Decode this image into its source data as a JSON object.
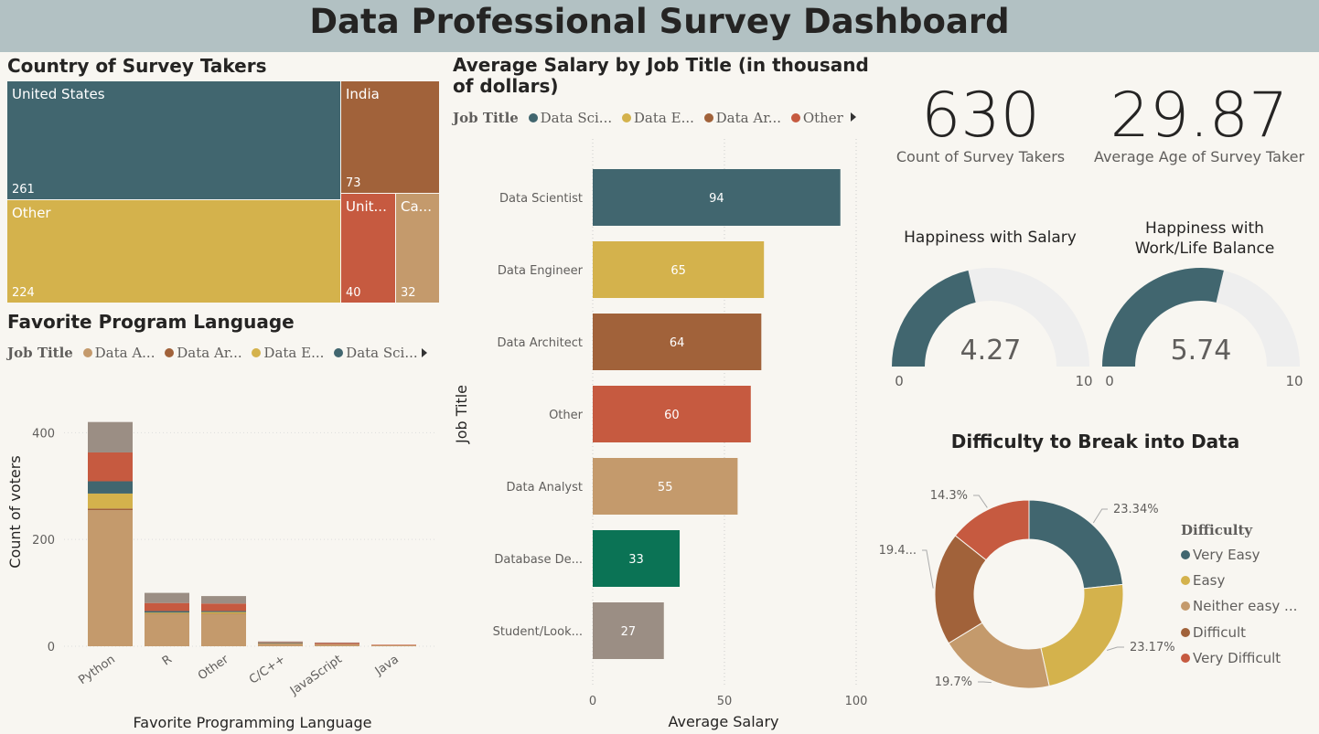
{
  "title": "Data Professional Survey Dashboard",
  "treemap": {
    "title": "Country of Survey Takers",
    "items": [
      {
        "label": "United States",
        "value": "261",
        "color": "#41666f"
      },
      {
        "label": "India",
        "value": "73",
        "color": "#a1623a"
      },
      {
        "label": "Other",
        "value": "224",
        "color": "#d4b24c"
      },
      {
        "label": "Unit...",
        "value": "40",
        "color": "#c65a40"
      },
      {
        "label": "Ca...",
        "value": "32",
        "color": "#c49a6c"
      }
    ]
  },
  "lang_chart": {
    "title": "Favorite Program Language",
    "legend": {
      "title": "Job Title",
      "items": [
        {
          "label": "Data A...",
          "color": "#c49a6c"
        },
        {
          "label": "Data Ar...",
          "color": "#a1623a"
        },
        {
          "label": "Data E...",
          "color": "#d4b24c"
        },
        {
          "label": "Data Sci...",
          "color": "#41666f"
        }
      ]
    },
    "ylabel": "Count of voters",
    "xlabel": "Favorite Programming Language"
  },
  "salary_chart": {
    "title": "Average Salary by Job Title (in thousand of dollars)",
    "legend": {
      "title": "Job Title",
      "items": [
        {
          "label": "Data Sci...",
          "color": "#41666f"
        },
        {
          "label": "Data E...",
          "color": "#d4b24c"
        },
        {
          "label": "Data Ar...",
          "color": "#a1623a"
        },
        {
          "label": "Other",
          "color": "#c65a40"
        }
      ]
    },
    "ylabel": "Job Title",
    "xlabel": "Average Salary"
  },
  "kpis": {
    "count": {
      "value": "630",
      "label": "Count of Survey Takers"
    },
    "age": {
      "value": "29.87",
      "label": "Average Age of Survey Taker"
    }
  },
  "gauges": [
    {
      "title": "Happiness with Salary",
      "value": 4.27,
      "display": "4.27",
      "min": "0",
      "max": "10",
      "color": "#41666f"
    },
    {
      "title": "Happiness with Work/Life Balance",
      "value": 5.74,
      "display": "5.74",
      "min": "0",
      "max": "10",
      "color": "#41666f"
    }
  ],
  "donut": {
    "title": "Difficulty to Break into Data",
    "legend_title": "Difficulty",
    "legend": [
      "Very Easy",
      "Easy",
      "Neither easy ...",
      "Difficult",
      "Very Difficult"
    ]
  },
  "chart_data": [
    {
      "type": "treemap",
      "title": "Country of Survey Takers",
      "categories": [
        "United States",
        "Other",
        "India",
        "United Kingdom",
        "Canada"
      ],
      "values": [
        261,
        224,
        73,
        40,
        32
      ]
    },
    {
      "type": "bar",
      "stacked": true,
      "title": "Favorite Program Language",
      "categories": [
        "Python",
        "R",
        "Other",
        "C/C++",
        "JavaScript",
        "Java"
      ],
      "xlabel": "Favorite Programming Language",
      "ylabel": "Count of voters",
      "ylim": [
        0,
        440
      ],
      "yticks": [
        0,
        200,
        400
      ],
      "series": [
        {
          "name": "Data A...",
          "color": "#c49a6c",
          "values": [
            255,
            60,
            60,
            6,
            4,
            2
          ]
        },
        {
          "name": "Data Ar...",
          "color": "#a1623a",
          "values": [
            3,
            1,
            1,
            0,
            0,
            0
          ]
        },
        {
          "name": "Data E...",
          "color": "#d4b24c",
          "values": [
            28,
            2,
            3,
            0,
            0,
            0
          ]
        },
        {
          "name": "Data Sci...",
          "color": "#41666f",
          "values": [
            23,
            3,
            2,
            1,
            0,
            0
          ]
        },
        {
          "color": "#c65a40",
          "values": [
            54,
            15,
            14,
            1,
            2,
            1
          ]
        },
        {
          "color": "#9b8e84",
          "values": [
            57,
            19,
            14,
            1,
            1,
            0
          ]
        }
      ]
    },
    {
      "type": "bar",
      "orientation": "horizontal",
      "title": "Average Salary by Job Title (in thousand of dollars)",
      "categories": [
        "Data Scientist",
        "Data Engineer",
        "Data Architect",
        "Other",
        "Data Analyst",
        "Database De...",
        "Student/Look..."
      ],
      "values": [
        94,
        65,
        64,
        60,
        55,
        33,
        27
      ],
      "colors": [
        "#41666f",
        "#d4b24c",
        "#a1623a",
        "#c65a40",
        "#c49a6c",
        "#0b7355",
        "#9b8e84"
      ],
      "xlabel": "Average Salary",
      "ylabel": "Job Title",
      "xlim": [
        0,
        100
      ],
      "xticks": [
        0,
        50,
        100
      ]
    },
    {
      "type": "pie",
      "donut": true,
      "title": "Difficulty to Break into Data",
      "categories": [
        "Very Easy",
        "Easy",
        "Neither easy ...",
        "Difficult",
        "Very Difficult"
      ],
      "values": [
        23.34,
        23.17,
        19.7,
        19.4,
        14.3
      ],
      "labels": [
        "23.34%",
        "23.17%",
        "19.7%",
        "19.4...",
        "14.3%"
      ],
      "colors": [
        "#41666f",
        "#d4b24c",
        "#c49a6c",
        "#a1623a",
        "#c65a40"
      ]
    }
  ]
}
